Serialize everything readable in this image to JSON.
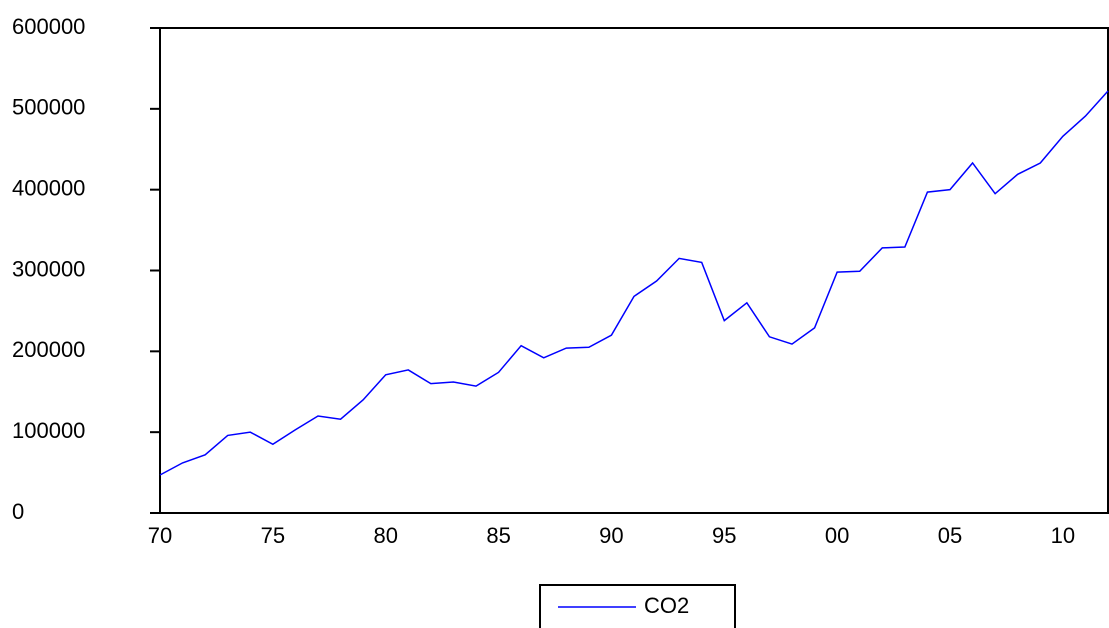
{
  "chart_data": {
    "type": "line",
    "categories": [
      "70",
      null,
      null,
      null,
      null,
      "75",
      null,
      null,
      null,
      null,
      "80",
      null,
      null,
      null,
      null,
      "85",
      null,
      null,
      null,
      null,
      "90",
      null,
      null,
      null,
      null,
      "95",
      null,
      null,
      null,
      null,
      "00",
      null,
      null,
      null,
      null,
      "05",
      null,
      null,
      null,
      null,
      "10",
      null,
      null
    ],
    "series": [
      {
        "name": "CO2",
        "color": "#0000ff",
        "values": [
          47000,
          62000,
          72000,
          96000,
          100000,
          85000,
          103000,
          120000,
          116000,
          140000,
          171000,
          177000,
          160000,
          162000,
          157000,
          174000,
          207000,
          192000,
          204000,
          205000,
          220000,
          268000,
          287000,
          315000,
          310000,
          238000,
          260000,
          218000,
          209000,
          229000,
          298000,
          299000,
          328000,
          329000,
          397000,
          400000,
          433000,
          395000,
          419000,
          433000,
          466000,
          491000,
          522000
        ]
      }
    ],
    "ylim": [
      0,
      600000
    ],
    "yticks": [
      0,
      100000,
      200000,
      300000,
      400000,
      500000,
      600000
    ],
    "grid": false,
    "legend": "bottom"
  }
}
